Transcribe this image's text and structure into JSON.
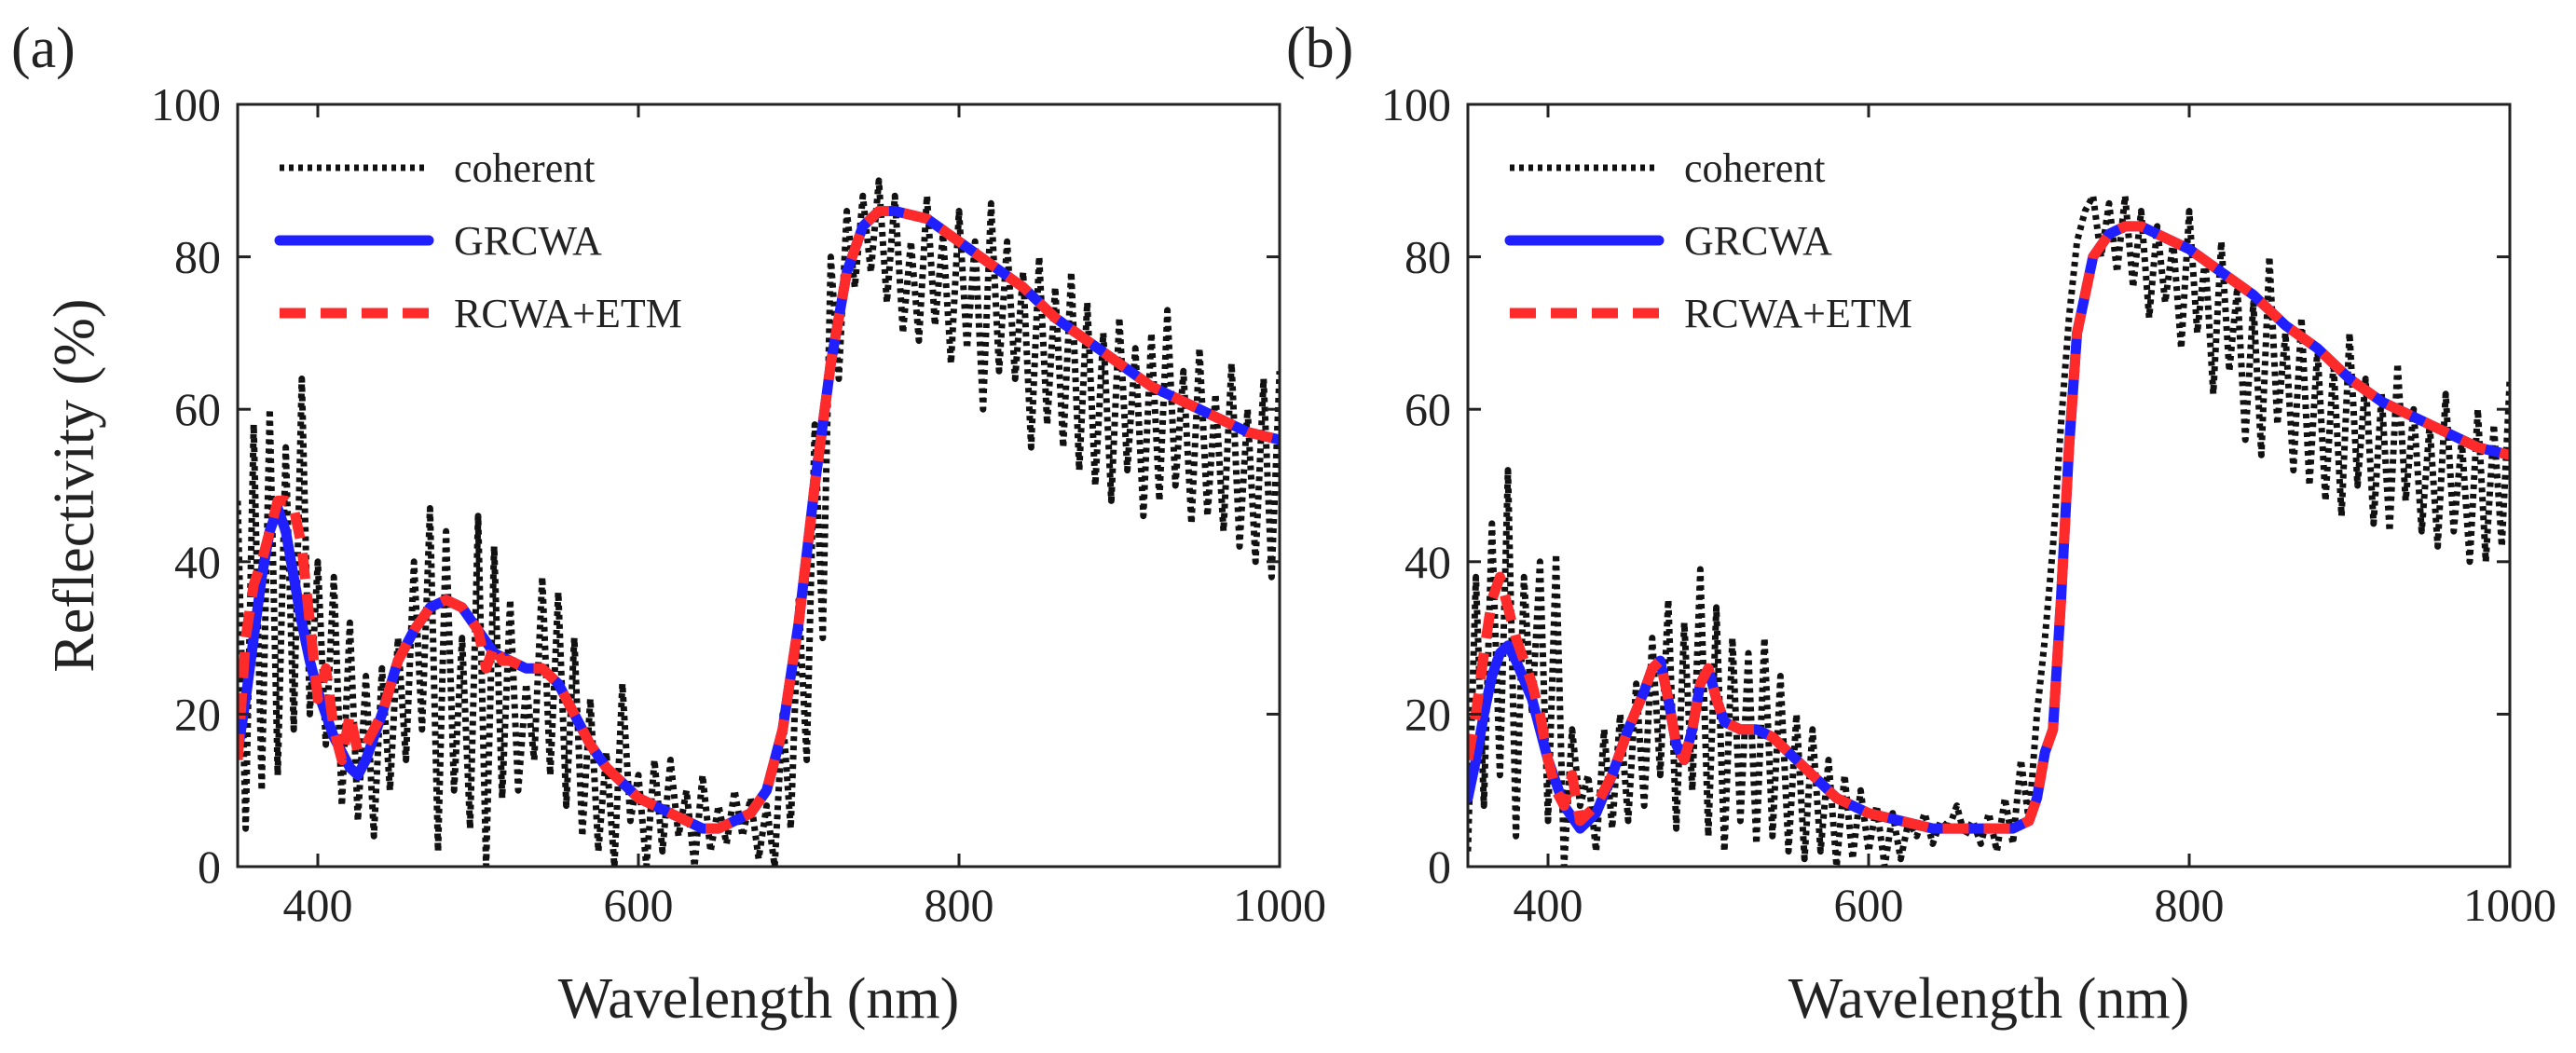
{
  "figure": {
    "colors": {
      "coherent": "#111111",
      "grcwa": "#1f1fff",
      "rcwa_etm": "#ff2a2a",
      "axis": "#222222"
    }
  },
  "chart_data": [
    {
      "type": "line",
      "panel_label": "(a)",
      "xlabel": "Wavelength (nm)",
      "ylabel": "Reflectivity (%)",
      "xlim": [
        350,
        1000
      ],
      "ylim": [
        0,
        100
      ],
      "xticks": [
        400,
        600,
        800,
        1000
      ],
      "xtick_labels": [
        "400",
        "600",
        "800",
        "1000"
      ],
      "yticks": [
        0,
        20,
        40,
        60,
        80,
        100
      ],
      "ytick_labels": [
        "0",
        "20",
        "40",
        "60",
        "80",
        "100"
      ],
      "legend": [
        "coherent",
        "GRCWA",
        "RCWA+ETM"
      ],
      "legend_location": "top-left",
      "series": [
        {
          "name": "coherent",
          "style": "dotted",
          "x": [
            350,
            355,
            360,
            365,
            370,
            375,
            380,
            385,
            390,
            395,
            400,
            405,
            410,
            415,
            420,
            425,
            430,
            435,
            440,
            445,
            450,
            455,
            460,
            465,
            470,
            475,
            480,
            485,
            490,
            495,
            500,
            505,
            510,
            515,
            520,
            525,
            530,
            535,
            540,
            545,
            550,
            555,
            560,
            565,
            570,
            575,
            580,
            585,
            590,
            595,
            600,
            605,
            610,
            615,
            620,
            625,
            630,
            635,
            640,
            645,
            650,
            655,
            660,
            665,
            670,
            675,
            680,
            685,
            690,
            695,
            700,
            705,
            710,
            715,
            720,
            725,
            730,
            735,
            740,
            745,
            750,
            755,
            760,
            765,
            770,
            775,
            780,
            785,
            790,
            795,
            800,
            805,
            810,
            815,
            820,
            825,
            830,
            835,
            840,
            845,
            850,
            855,
            860,
            865,
            870,
            875,
            880,
            885,
            890,
            895,
            900,
            905,
            910,
            915,
            920,
            925,
            930,
            935,
            940,
            945,
            950,
            955,
            960,
            965,
            970,
            975,
            980,
            985,
            990,
            995,
            1000
          ],
          "y": [
            48,
            5,
            58,
            10,
            60,
            12,
            55,
            18,
            64,
            20,
            40,
            16,
            38,
            8,
            32,
            6,
            25,
            4,
            26,
            10,
            30,
            14,
            40,
            18,
            47,
            2,
            44,
            10,
            30,
            5,
            46,
            0,
            42,
            9,
            35,
            10,
            24,
            14,
            38,
            12,
            36,
            8,
            30,
            4,
            22,
            2,
            15,
            0,
            24,
            6,
            12,
            0,
            14,
            2,
            14,
            4,
            10,
            0,
            12,
            2,
            8,
            3,
            10,
            4,
            9,
            1,
            8,
            0,
            20,
            5,
            35,
            14,
            58,
            30,
            80,
            64,
            86,
            76,
            88,
            78,
            90,
            74,
            88,
            70,
            82,
            69,
            88,
            71,
            83,
            66,
            86,
            68,
            82,
            60,
            87,
            65,
            82,
            64,
            78,
            55,
            80,
            58,
            76,
            55,
            78,
            52,
            74,
            50,
            70,
            48,
            72,
            52,
            68,
            46,
            70,
            48,
            73,
            50,
            65,
            45,
            68,
            46,
            62,
            44,
            66,
            42,
            60,
            40,
            64,
            38,
            65
          ]
        },
        {
          "name": "GRCWA",
          "style": "solid",
          "x": [
            350,
            355,
            360,
            365,
            370,
            375,
            380,
            385,
            390,
            395,
            400,
            410,
            420,
            425,
            430,
            440,
            450,
            460,
            470,
            480,
            490,
            500,
            510,
            520,
            530,
            540,
            550,
            560,
            570,
            580,
            590,
            600,
            620,
            640,
            650,
            660,
            670,
            680,
            690,
            700,
            710,
            720,
            730,
            740,
            750,
            760,
            780,
            800,
            820,
            840,
            860,
            880,
            900,
            920,
            940,
            960,
            980,
            1000
          ],
          "y": [
            15,
            22,
            30,
            38,
            44,
            47,
            44,
            38,
            32,
            27,
            23,
            17,
            13,
            12,
            14,
            20,
            27,
            31,
            34,
            35,
            34,
            31,
            28,
            27,
            26,
            26,
            24,
            20,
            16,
            13,
            11,
            9,
            7,
            5,
            5,
            6,
            7,
            10,
            18,
            32,
            50,
            66,
            78,
            84,
            86,
            86,
            85,
            82,
            79,
            76,
            72,
            69,
            66,
            63,
            61,
            59,
            57,
            56
          ]
        },
        {
          "name": "RCWA+ETM",
          "style": "dashed",
          "x": [
            350,
            355,
            360,
            365,
            370,
            375,
            380,
            385,
            390,
            395,
            400,
            405,
            410,
            415,
            420,
            425,
            430,
            440,
            450,
            460,
            470,
            480,
            490,
            500,
            505,
            510,
            515,
            520,
            530,
            540,
            550,
            560,
            570,
            580,
            590,
            600,
            620,
            640,
            650,
            660,
            670,
            680,
            690,
            700,
            710,
            720,
            730,
            740,
            750,
            760,
            780,
            800,
            820,
            840,
            860,
            880,
            900,
            920,
            940,
            960,
            980,
            1000
          ],
          "y": [
            14,
            30,
            37,
            40,
            44,
            48,
            48,
            47,
            42,
            32,
            22,
            26,
            18,
            14,
            20,
            15,
            16,
            20,
            27,
            31,
            34,
            35,
            34,
            31,
            26,
            29,
            27,
            27,
            26,
            26,
            24,
            20,
            16,
            13,
            11,
            9,
            7,
            5,
            5,
            6,
            7,
            10,
            18,
            32,
            50,
            66,
            78,
            84,
            86,
            86,
            85,
            82,
            79,
            76,
            72,
            69,
            66,
            63,
            61,
            59,
            57,
            56
          ]
        }
      ]
    },
    {
      "type": "line",
      "panel_label": "(b)",
      "xlabel": "Wavelength (nm)",
      "ylabel": "",
      "xlim": [
        350,
        1000
      ],
      "ylim": [
        0,
        100
      ],
      "xticks": [
        400,
        600,
        800,
        1000
      ],
      "xtick_labels": [
        "400",
        "600",
        "800",
        "1000"
      ],
      "yticks": [
        0,
        20,
        40,
        60,
        80,
        100
      ],
      "ytick_labels": [
        "0",
        "20",
        "40",
        "60",
        "80",
        "100"
      ],
      "legend": [
        "coherent",
        "GRCWA",
        "RCWA+ETM"
      ],
      "legend_location": "top-left",
      "series": [
        {
          "name": "coherent",
          "style": "dotted",
          "x": [
            350,
            355,
            360,
            365,
            370,
            375,
            380,
            385,
            390,
            395,
            400,
            405,
            410,
            415,
            420,
            425,
            430,
            435,
            440,
            445,
            450,
            455,
            460,
            465,
            470,
            475,
            480,
            485,
            490,
            495,
            500,
            505,
            510,
            515,
            520,
            525,
            530,
            535,
            540,
            545,
            550,
            555,
            560,
            565,
            570,
            575,
            580,
            585,
            590,
            595,
            600,
            605,
            610,
            615,
            620,
            625,
            630,
            635,
            640,
            645,
            650,
            655,
            660,
            665,
            670,
            675,
            680,
            685,
            690,
            695,
            700,
            705,
            710,
            715,
            720,
            725,
            730,
            735,
            740,
            745,
            750,
            755,
            760,
            765,
            770,
            775,
            780,
            785,
            790,
            795,
            800,
            805,
            810,
            815,
            820,
            825,
            830,
            835,
            840,
            845,
            850,
            855,
            860,
            865,
            870,
            875,
            880,
            885,
            890,
            895,
            900,
            905,
            910,
            915,
            920,
            925,
            930,
            935,
            940,
            945,
            950,
            955,
            960,
            965,
            970,
            975,
            980,
            985,
            990,
            995,
            1000
          ],
          "y": [
            2,
            38,
            8,
            45,
            12,
            52,
            4,
            38,
            20,
            40,
            6,
            41,
            0,
            18,
            8,
            12,
            2,
            18,
            5,
            20,
            6,
            24,
            8,
            30,
            12,
            35,
            5,
            32,
            10,
            39,
            4,
            34,
            2,
            30,
            6,
            28,
            3,
            30,
            4,
            25,
            2,
            20,
            1,
            18,
            2,
            14,
            0,
            12,
            1,
            10,
            2,
            8,
            0,
            7,
            1,
            6,
            4,
            7,
            3,
            6,
            5,
            8,
            4,
            6,
            3,
            7,
            2,
            9,
            3,
            14,
            6,
            20,
            30,
            42,
            58,
            72,
            82,
            86,
            88,
            80,
            87,
            78,
            88,
            76,
            86,
            72,
            84,
            74,
            82,
            68,
            86,
            70,
            80,
            62,
            82,
            65,
            76,
            56,
            74,
            54,
            80,
            58,
            70,
            52,
            72,
            50,
            68,
            48,
            66,
            46,
            70,
            50,
            64,
            45,
            62,
            44,
            66,
            48,
            60,
            44,
            58,
            42,
            62,
            44,
            56,
            40,
            60,
            40,
            58,
            42,
            64
          ]
        },
        {
          "name": "GRCWA",
          "style": "solid",
          "x": [
            350,
            355,
            360,
            365,
            370,
            375,
            380,
            390,
            400,
            410,
            420,
            430,
            440,
            450,
            460,
            465,
            470,
            475,
            480,
            485,
            490,
            495,
            500,
            505,
            510,
            520,
            530,
            540,
            550,
            560,
            570,
            580,
            590,
            600,
            620,
            640,
            660,
            680,
            690,
            700,
            705,
            710,
            715,
            720,
            725,
            730,
            740,
            750,
            760,
            770,
            780,
            800,
            820,
            840,
            860,
            880,
            900,
            920,
            940,
            960,
            980,
            1000
          ],
          "y": [
            9,
            14,
            20,
            25,
            28,
            29,
            27,
            22,
            14,
            8,
            5,
            7,
            12,
            18,
            23,
            26,
            27,
            22,
            16,
            14,
            18,
            24,
            26,
            22,
            19,
            18,
            18,
            17,
            15,
            13,
            11,
            9,
            8,
            7,
            6,
            5,
            5,
            5,
            5,
            6,
            9,
            15,
            18,
            35,
            55,
            70,
            80,
            83,
            84,
            84,
            83,
            81,
            78,
            75,
            71,
            68,
            64,
            61,
            59,
            57,
            55,
            54
          ]
        },
        {
          "name": "RCWA+ETM",
          "style": "dashed",
          "x": [
            350,
            355,
            360,
            365,
            370,
            375,
            380,
            385,
            390,
            395,
            400,
            405,
            410,
            415,
            420,
            425,
            430,
            440,
            450,
            460,
            465,
            470,
            475,
            480,
            485,
            490,
            495,
            500,
            505,
            510,
            520,
            530,
            540,
            550,
            560,
            570,
            580,
            590,
            600,
            620,
            640,
            660,
            680,
            690,
            700,
            705,
            710,
            715,
            720,
            725,
            730,
            740,
            750,
            760,
            770,
            780,
            800,
            820,
            840,
            860,
            880,
            900,
            920,
            940,
            960,
            980,
            1000
          ],
          "y": [
            14,
            20,
            28,
            35,
            38,
            34,
            30,
            27,
            24,
            20,
            14,
            10,
            8,
            12,
            6,
            7,
            8,
            12,
            18,
            23,
            26,
            27,
            22,
            16,
            14,
            18,
            24,
            26,
            22,
            19,
            18,
            18,
            17,
            15,
            13,
            11,
            9,
            8,
            7,
            6,
            5,
            5,
            5,
            5,
            6,
            9,
            15,
            18,
            35,
            55,
            70,
            80,
            83,
            84,
            84,
            83,
            81,
            78,
            75,
            71,
            68,
            64,
            61,
            59,
            57,
            55,
            54
          ]
        }
      ]
    }
  ]
}
